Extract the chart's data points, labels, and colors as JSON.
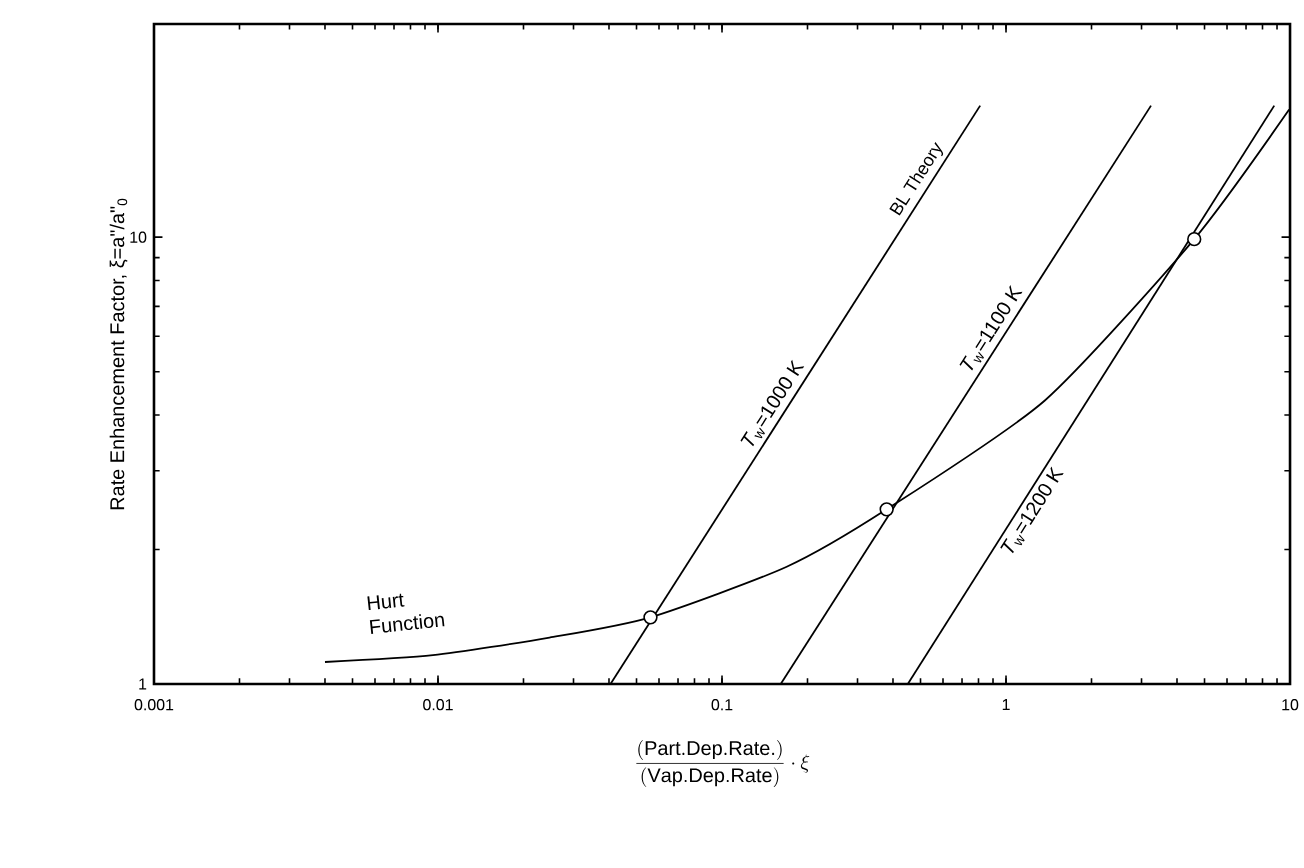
{
  "chart_data": {
    "type": "line",
    "log": "xy",
    "xlabel": "\\frac{\\mathrm{(Part.Dep.Rate.)}}{\\mathrm{(Vap.Dep.Rate)}}\\cdot\\xi",
    "ylabel": "Rate Enhancement Factor, ξ=a\"/a\"$_{0}$",
    "xlim": [
      0.001,
      10
    ],
    "ylim": [
      1,
      30
    ],
    "xticks": [
      0.001,
      0.01,
      0.1,
      1,
      10
    ],
    "yticks": [
      1,
      10
    ],
    "annotations": [
      "BL Theory"
    ],
    "series": [
      {
        "name": "*T*$_{w}$=1000 K",
        "color": "#000000",
        "x": [
          0.0405,
          0.811
        ],
        "values": [
          1,
          19.7
        ]
      },
      {
        "name": "*T*$_{w}$=1100 K",
        "color": "#000000",
        "x": [
          0.161,
          3.24
        ],
        "values": [
          1,
          19.7
        ]
      },
      {
        "name": "*T*$_{w}$=1200 K",
        "color": "#000000",
        "x": [
          0.451,
          8.8
        ],
        "values": [
          1,
          19.7
        ]
      },
      {
        "name": "Hurt Function",
        "color": "#000000",
        "x": [
          0.004,
          0.0096,
          0.0247,
          0.056,
          0.169,
          0.38,
          1.37,
          4.6,
          9.93
        ],
        "values": [
          1.12,
          1.16,
          1.27,
          1.41,
          1.83,
          2.46,
          4.31,
          9.9,
          19.3
        ]
      },
      {
        "type": "scatter",
        "marker": "circle",
        "color": "#000000",
        "x": [
          0.056,
          0.38,
          4.6
        ],
        "values": [
          1.41,
          2.46,
          9.9
        ]
      }
    ]
  }
}
